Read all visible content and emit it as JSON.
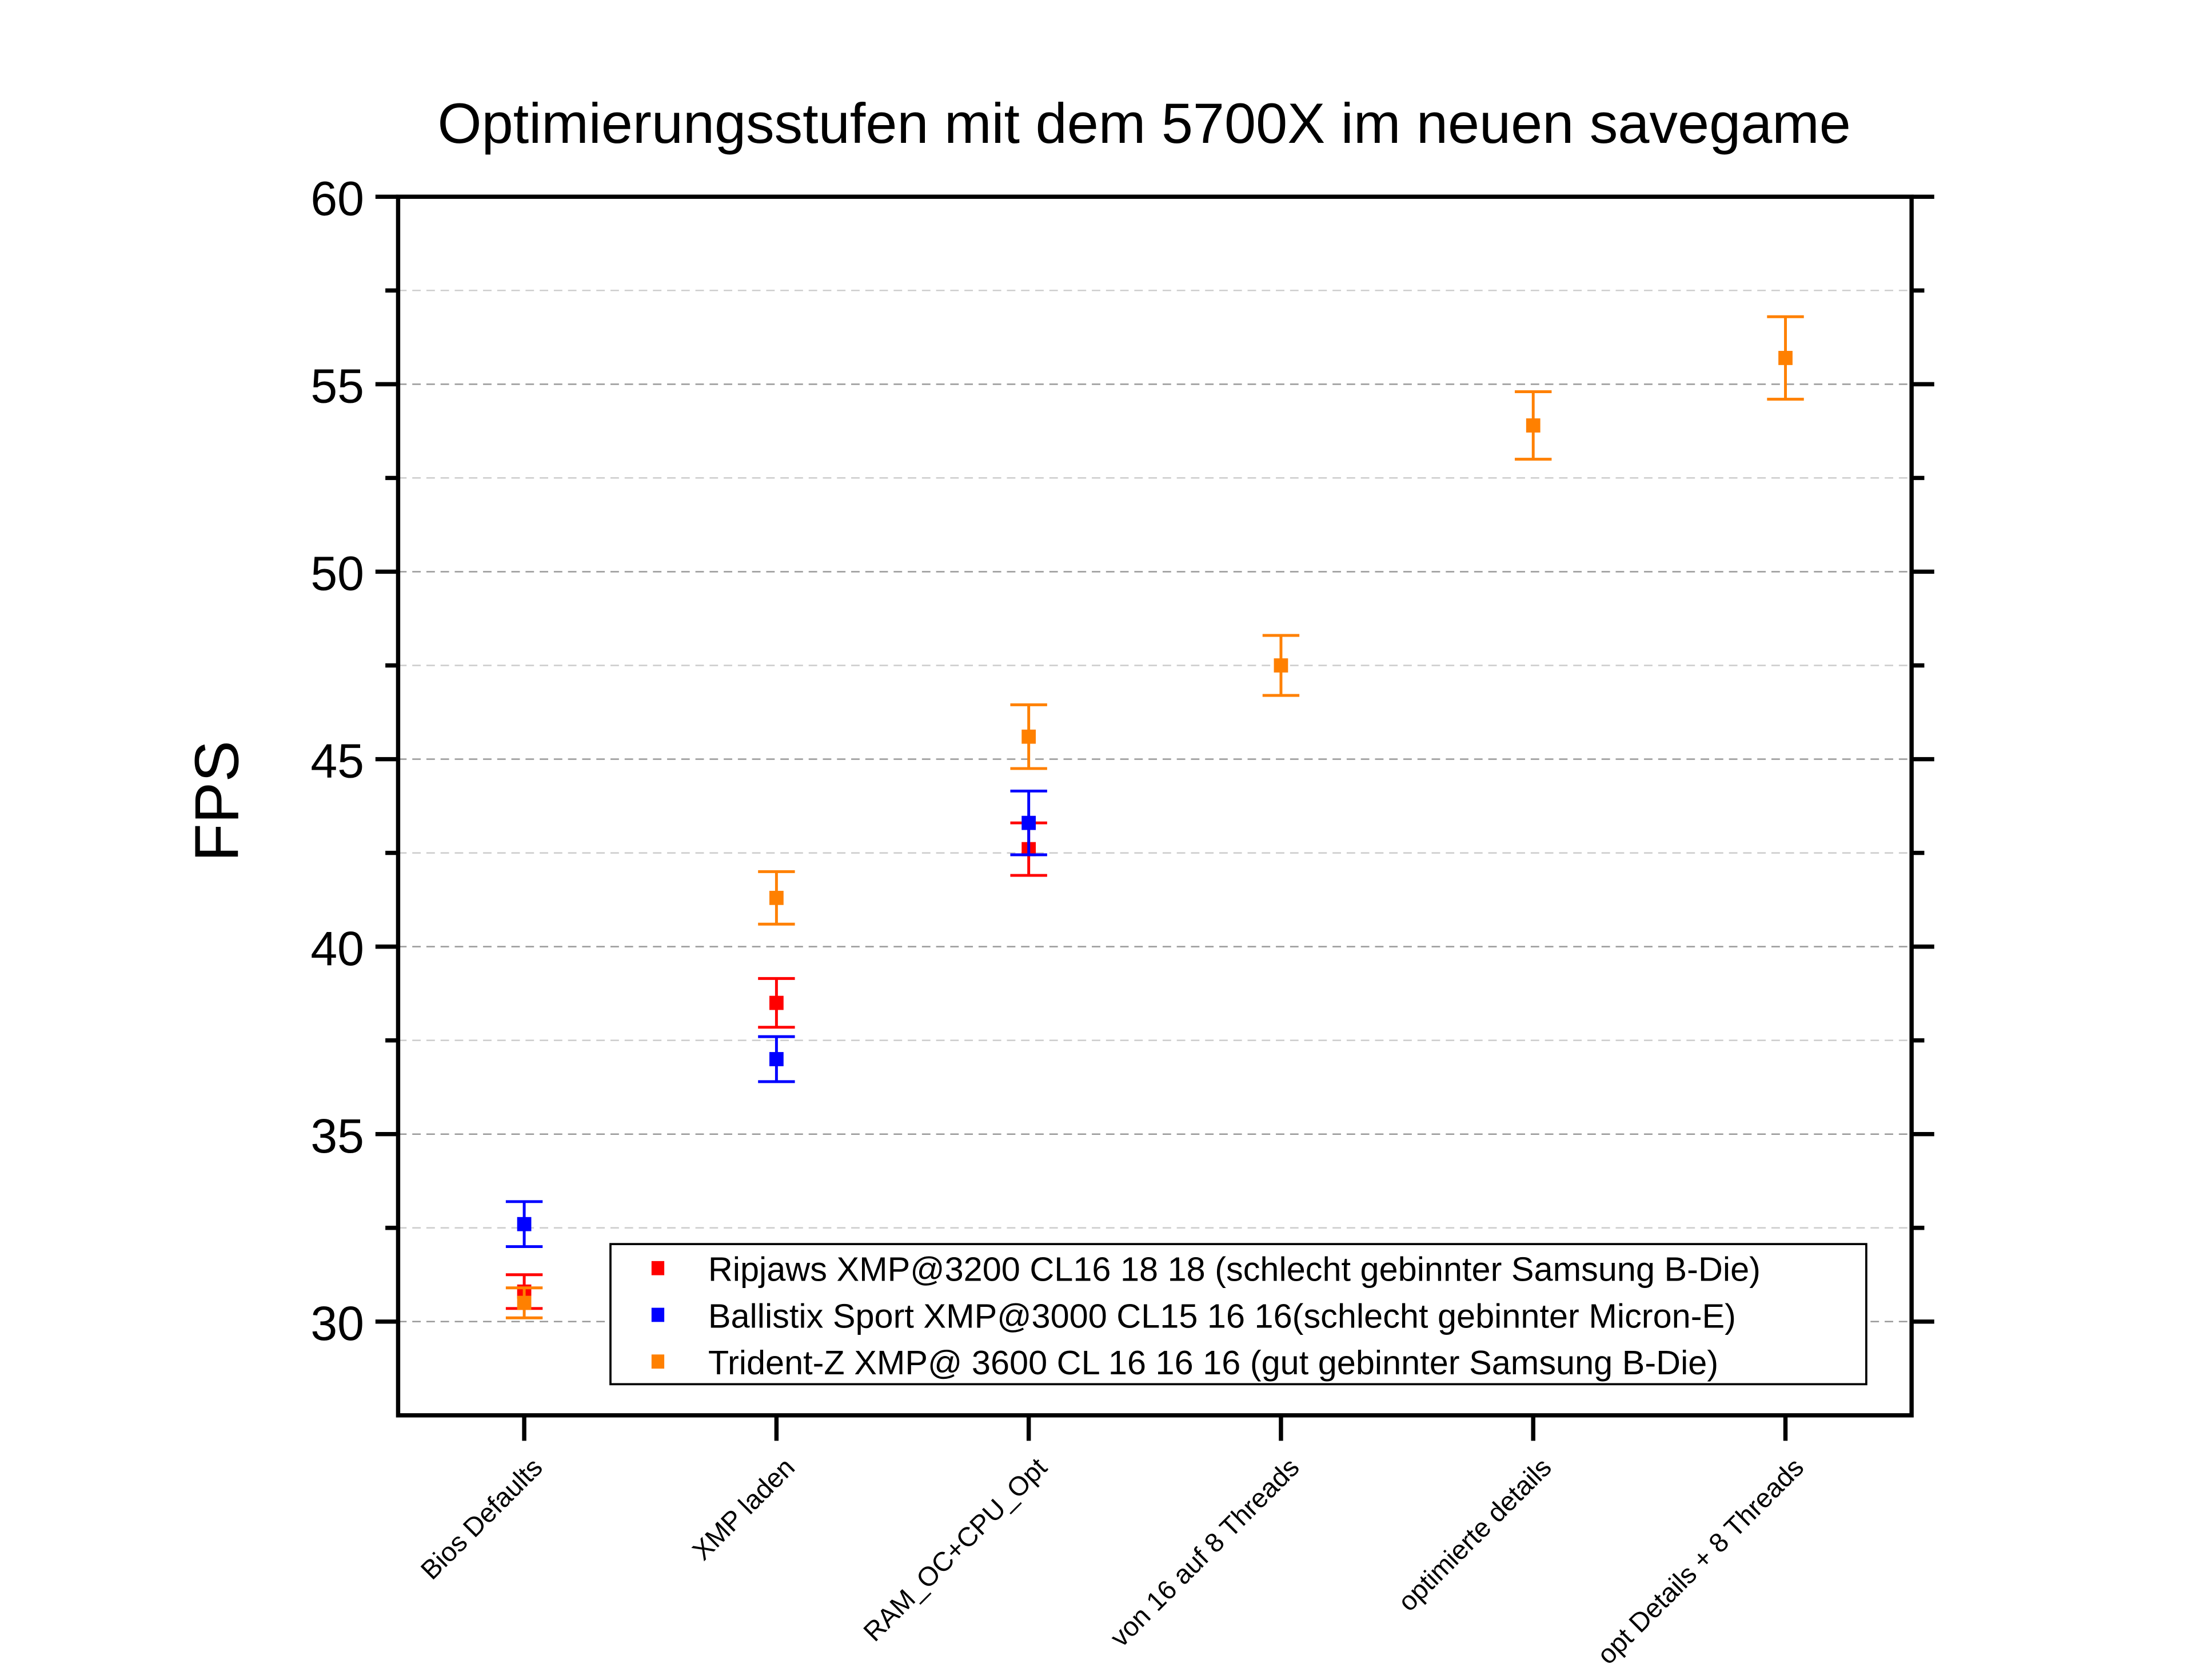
{
  "chart_data": {
    "type": "scatter",
    "title": "Optimierungsstufen mit dem 5700X im neuen savegame",
    "xlabel": "",
    "ylabel": "FPS",
    "ylim": [
      27.5,
      60
    ],
    "yticks": [
      30,
      35,
      40,
      45,
      50,
      55,
      60
    ],
    "grid": true,
    "legend_position": "bottom-right",
    "categories": [
      "Bios Defaults",
      "XMP laden",
      "RAM_OC+CPU_Opt",
      "von 16 auf 8 Threads",
      "optimierte details",
      "opt Details + 8 Threads"
    ],
    "series": [
      {
        "name": "Ripjaws XMP@3200 CL16 18 18 (schlecht gebinnter Samsung B-Die)",
        "color": "#ff0000",
        "values": [
          30.8,
          38.5,
          42.6,
          null,
          null,
          null
        ],
        "errors": [
          0.45,
          0.65,
          0.7,
          null,
          null,
          null
        ]
      },
      {
        "name": "Ballistix Sport XMP@3000 CL15 16 16(schlecht gebinnter Micron-E)",
        "color": "#0000ff",
        "values": [
          32.6,
          37.0,
          43.3,
          null,
          null,
          null
        ],
        "errors": [
          0.6,
          0.6,
          0.85,
          null,
          null,
          null
        ]
      },
      {
        "name": "Trident-Z XMP@ 3600 CL 16 16 16 (gut gebinnter Samsung B-Die)",
        "color": "#ff8000",
        "values": [
          30.5,
          41.3,
          45.6,
          47.5,
          53.9,
          55.7
        ],
        "errors": [
          0.4,
          0.7,
          0.85,
          0.8,
          0.9,
          1.1
        ]
      }
    ]
  }
}
